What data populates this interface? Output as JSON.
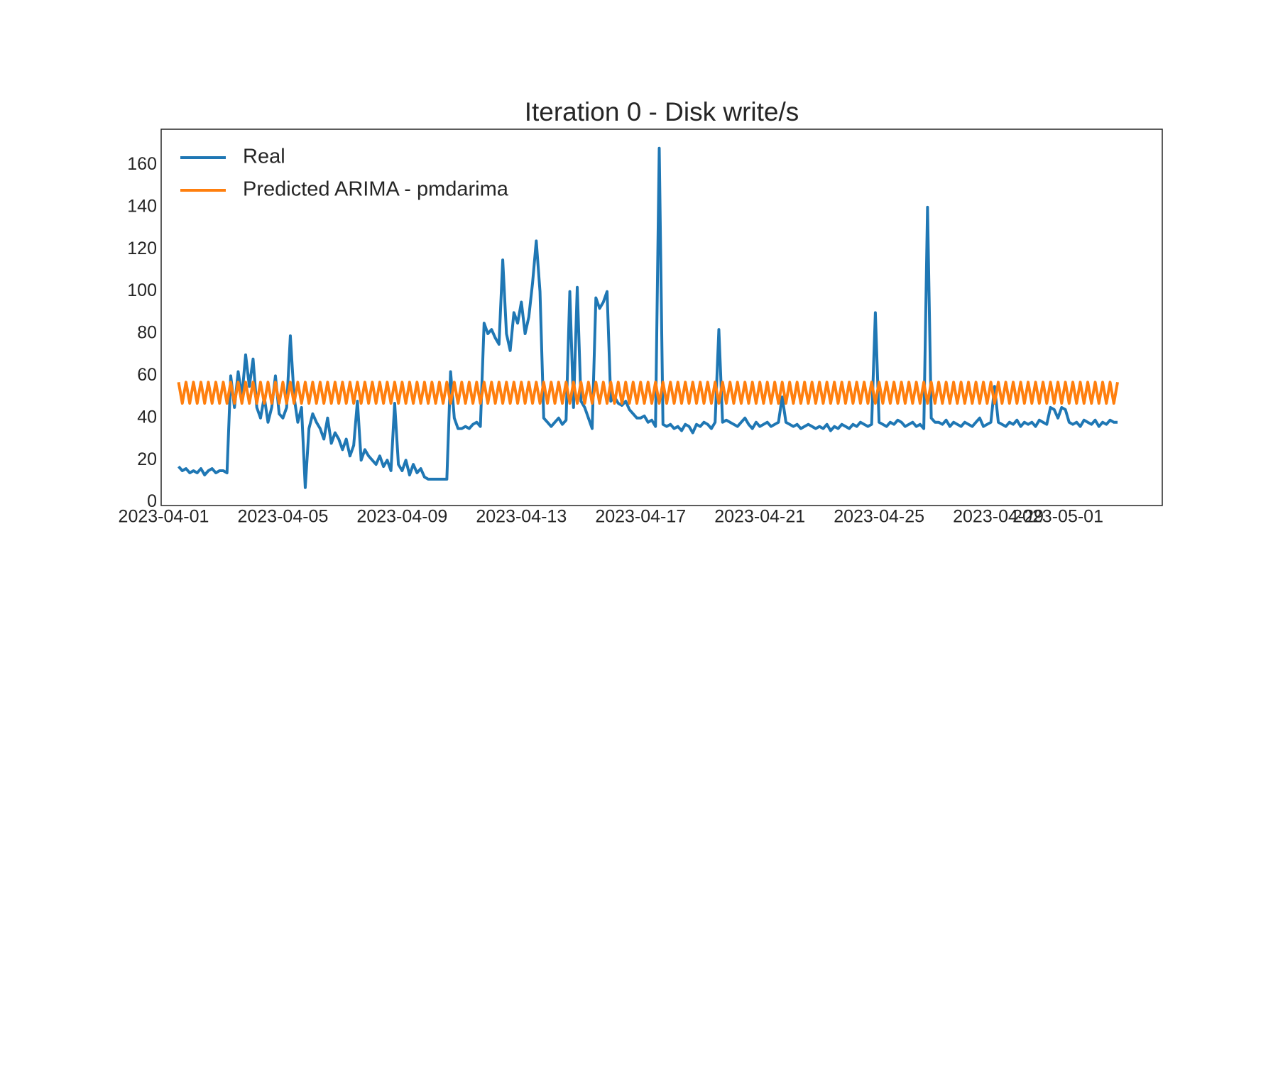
{
  "chart_data": {
    "type": "line",
    "title": "Iteration 0 - Disk write/s",
    "legend": "upper left",
    "grid": false,
    "x": [
      "2023-04-01 12:00",
      "2023-04-01 15:00",
      "2023-04-01 18:00",
      "2023-04-01 21:00",
      "2023-04-02 00:00",
      "2023-04-02 03:00",
      "2023-04-02 06:00",
      "2023-04-02 09:00",
      "2023-04-02 12:00",
      "2023-04-02 15:00",
      "2023-04-02 18:00",
      "2023-04-02 21:00",
      "2023-04-03 00:00",
      "2023-04-03 03:00",
      "2023-04-03 06:00",
      "2023-04-03 09:00",
      "2023-04-03 12:00",
      "2023-04-03 15:00",
      "2023-04-03 18:00",
      "2023-04-03 21:00",
      "2023-04-04 00:00",
      "2023-04-04 03:00",
      "2023-04-04 06:00",
      "2023-04-04 09:00",
      "2023-04-04 12:00",
      "2023-04-04 15:00",
      "2023-04-04 18:00",
      "2023-04-04 21:00",
      "2023-04-05 00:00",
      "2023-04-05 03:00",
      "2023-04-05 06:00",
      "2023-04-05 09:00",
      "2023-04-05 12:00",
      "2023-04-05 15:00",
      "2023-04-05 18:00",
      "2023-04-05 21:00",
      "2023-04-06 00:00",
      "2023-04-06 03:00",
      "2023-04-06 06:00",
      "2023-04-06 09:00",
      "2023-04-06 12:00",
      "2023-04-06 15:00",
      "2023-04-06 18:00",
      "2023-04-06 21:00",
      "2023-04-07 00:00",
      "2023-04-07 03:00",
      "2023-04-07 06:00",
      "2023-04-07 09:00",
      "2023-04-07 12:00",
      "2023-04-07 15:00",
      "2023-04-07 18:00",
      "2023-04-07 21:00",
      "2023-04-08 00:00",
      "2023-04-08 03:00",
      "2023-04-08 06:00",
      "2023-04-08 09:00",
      "2023-04-08 12:00",
      "2023-04-08 15:00",
      "2023-04-08 18:00",
      "2023-04-08 21:00",
      "2023-04-09 00:00",
      "2023-04-09 03:00",
      "2023-04-09 06:00",
      "2023-04-09 09:00",
      "2023-04-09 12:00",
      "2023-04-09 15:00",
      "2023-04-09 18:00",
      "2023-04-09 21:00",
      "2023-04-10 00:00",
      "2023-04-10 03:00",
      "2023-04-10 06:00",
      "2023-04-10 09:00",
      "2023-04-10 12:00",
      "2023-04-10 15:00",
      "2023-04-10 18:00",
      "2023-04-10 21:00",
      "2023-04-11 00:00",
      "2023-04-11 03:00",
      "2023-04-11 06:00",
      "2023-04-11 09:00",
      "2023-04-11 12:00",
      "2023-04-11 15:00",
      "2023-04-11 18:00",
      "2023-04-11 21:00",
      "2023-04-12 00:00",
      "2023-04-12 03:00",
      "2023-04-12 06:00",
      "2023-04-12 09:00",
      "2023-04-12 12:00",
      "2023-04-12 15:00",
      "2023-04-12 18:00",
      "2023-04-12 21:00",
      "2023-04-13 00:00",
      "2023-04-13 03:00",
      "2023-04-13 06:00",
      "2023-04-13 09:00",
      "2023-04-13 12:00",
      "2023-04-13 15:00",
      "2023-04-13 18:00",
      "2023-04-13 21:00",
      "2023-04-14 00:00",
      "2023-04-14 03:00",
      "2023-04-14 06:00",
      "2023-04-14 09:00",
      "2023-04-14 12:00",
      "2023-04-14 15:00",
      "2023-04-14 18:00",
      "2023-04-14 21:00",
      "2023-04-15 00:00",
      "2023-04-15 03:00",
      "2023-04-15 06:00",
      "2023-04-15 09:00",
      "2023-04-15 12:00",
      "2023-04-15 15:00",
      "2023-04-15 18:00",
      "2023-04-15 21:00",
      "2023-04-16 00:00",
      "2023-04-16 03:00",
      "2023-04-16 06:00",
      "2023-04-16 09:00",
      "2023-04-16 12:00",
      "2023-04-16 15:00",
      "2023-04-16 18:00",
      "2023-04-16 21:00",
      "2023-04-17 00:00",
      "2023-04-17 03:00",
      "2023-04-17 06:00",
      "2023-04-17 09:00",
      "2023-04-17 12:00",
      "2023-04-17 15:00",
      "2023-04-17 18:00",
      "2023-04-17 21:00",
      "2023-04-18 00:00",
      "2023-04-18 03:00",
      "2023-04-18 06:00",
      "2023-04-18 09:00",
      "2023-04-18 12:00",
      "2023-04-18 15:00",
      "2023-04-18 18:00",
      "2023-04-18 21:00",
      "2023-04-19 00:00",
      "2023-04-19 03:00",
      "2023-04-19 06:00",
      "2023-04-19 09:00",
      "2023-04-19 12:00",
      "2023-04-19 15:00",
      "2023-04-19 18:00",
      "2023-04-19 21:00",
      "2023-04-20 00:00",
      "2023-04-20 03:00",
      "2023-04-20 06:00",
      "2023-04-20 09:00",
      "2023-04-20 12:00",
      "2023-04-20 15:00",
      "2023-04-20 18:00",
      "2023-04-20 21:00",
      "2023-04-21 00:00",
      "2023-04-21 03:00",
      "2023-04-21 06:00",
      "2023-04-21 09:00",
      "2023-04-21 12:00",
      "2023-04-21 15:00",
      "2023-04-21 18:00",
      "2023-04-21 21:00",
      "2023-04-22 00:00",
      "2023-04-22 03:00",
      "2023-04-22 06:00",
      "2023-04-22 09:00",
      "2023-04-22 12:00",
      "2023-04-22 15:00",
      "2023-04-22 18:00",
      "2023-04-22 21:00",
      "2023-04-23 00:00",
      "2023-04-23 03:00",
      "2023-04-23 06:00",
      "2023-04-23 09:00",
      "2023-04-23 12:00",
      "2023-04-23 15:00",
      "2023-04-23 18:00",
      "2023-04-23 21:00",
      "2023-04-24 00:00",
      "2023-04-24 03:00",
      "2023-04-24 06:00",
      "2023-04-24 09:00",
      "2023-04-24 12:00",
      "2023-04-24 15:00",
      "2023-04-24 18:00",
      "2023-04-24 21:00",
      "2023-04-25 00:00",
      "2023-04-25 03:00",
      "2023-04-25 06:00",
      "2023-04-25 09:00",
      "2023-04-25 12:00",
      "2023-04-25 15:00",
      "2023-04-25 18:00",
      "2023-04-25 21:00",
      "2023-04-26 00:00",
      "2023-04-26 03:00",
      "2023-04-26 06:00",
      "2023-04-26 09:00",
      "2023-04-26 12:00",
      "2023-04-26 15:00",
      "2023-04-26 18:00",
      "2023-04-26 21:00",
      "2023-04-27 00:00",
      "2023-04-27 03:00",
      "2023-04-27 06:00",
      "2023-04-27 09:00",
      "2023-04-27 12:00",
      "2023-04-27 15:00",
      "2023-04-27 18:00",
      "2023-04-27 21:00",
      "2023-04-28 00:00",
      "2023-04-28 03:00",
      "2023-04-28 06:00",
      "2023-04-28 09:00",
      "2023-04-28 12:00",
      "2023-04-28 15:00",
      "2023-04-28 18:00",
      "2023-04-28 21:00",
      "2023-04-29 00:00",
      "2023-04-29 03:00",
      "2023-04-29 06:00",
      "2023-04-29 09:00",
      "2023-04-29 12:00",
      "2023-04-29 15:00",
      "2023-04-29 18:00",
      "2023-04-29 21:00",
      "2023-04-30 00:00",
      "2023-04-30 03:00",
      "2023-04-30 06:00",
      "2023-04-30 09:00",
      "2023-04-30 12:00",
      "2023-04-30 15:00",
      "2023-04-30 18:00",
      "2023-04-30 21:00",
      "2023-05-01 00:00",
      "2023-05-01 03:00",
      "2023-05-01 06:00",
      "2023-05-01 09:00",
      "2023-05-01 12:00",
      "2023-05-01 15:00",
      "2023-05-01 18:00",
      "2023-05-01 21:00",
      "2023-05-02 00:00",
      "2023-05-02 03:00",
      "2023-05-02 06:00",
      "2023-05-02 09:00",
      "2023-05-02 12:00",
      "2023-05-02 15:00",
      "2023-05-02 18:00",
      "2023-05-02 21:00",
      "2023-05-03 00:00"
    ],
    "series": [
      {
        "name": "Real",
        "color": "#1f77b4",
        "values": [
          17,
          15,
          16,
          14,
          15,
          14,
          16,
          13,
          15,
          16,
          14,
          15,
          15,
          14,
          60,
          45,
          62,
          50,
          70,
          55,
          68,
          45,
          40,
          50,
          38,
          45,
          60,
          42,
          40,
          45,
          79,
          50,
          38,
          45,
          7,
          35,
          42,
          38,
          35,
          30,
          40,
          28,
          33,
          30,
          25,
          30,
          22,
          27,
          48,
          20,
          25,
          22,
          20,
          18,
          22,
          17,
          20,
          15,
          47,
          18,
          15,
          20,
          13,
          18,
          14,
          16,
          12,
          11,
          11,
          11,
          11,
          11,
          11,
          62,
          40,
          35,
          35,
          36,
          35,
          37,
          38,
          36,
          85,
          80,
          82,
          78,
          75,
          115,
          80,
          72,
          90,
          85,
          95,
          80,
          88,
          104,
          124,
          100,
          40,
          38,
          36,
          38,
          40,
          37,
          39,
          100,
          45,
          102,
          48,
          45,
          40,
          35,
          97,
          92,
          95,
          100,
          48,
          50,
          47,
          46,
          48,
          44,
          42,
          40,
          40,
          41,
          38,
          39,
          36,
          168,
          37,
          36,
          37,
          35,
          36,
          34,
          37,
          36,
          33,
          37,
          36,
          38,
          37,
          35,
          38,
          82,
          38,
          39,
          38,
          37,
          36,
          38,
          40,
          37,
          35,
          38,
          36,
          37,
          38,
          36,
          37,
          38,
          50,
          38,
          37,
          36,
          37,
          35,
          36,
          37,
          36,
          35,
          36,
          35,
          37,
          34,
          36,
          35,
          37,
          36,
          35,
          37,
          36,
          38,
          37,
          36,
          37,
          90,
          38,
          37,
          36,
          38,
          37,
          39,
          38,
          36,
          37,
          38,
          36,
          37,
          35,
          140,
          40,
          38,
          38,
          37,
          39,
          36,
          38,
          37,
          36,
          38,
          37,
          36,
          38,
          40,
          36,
          37,
          38,
          55,
          38,
          37,
          36,
          38,
          37,
          39,
          36,
          38,
          37,
          38,
          36,
          39,
          38,
          37,
          45,
          44,
          40,
          45,
          44,
          38,
          37,
          38,
          36,
          39,
          38,
          37,
          39,
          36,
          38,
          37,
          39,
          38,
          38
        ]
      },
      {
        "name": "Predicted ARIMA - pmdarima",
        "color": "#ff7f0e",
        "values": [
          57,
          47,
          57,
          47,
          57,
          47,
          57,
          47,
          57,
          47,
          57,
          47,
          57,
          47,
          57,
          47,
          57,
          47,
          57,
          47,
          57,
          47,
          57,
          47,
          57,
          47,
          57,
          47,
          57,
          47,
          57,
          47,
          57,
          47,
          57,
          47,
          57,
          47,
          57,
          47,
          57,
          47,
          57,
          47,
          57,
          47,
          57,
          47,
          57,
          47,
          57,
          47,
          57,
          47,
          57,
          47,
          57,
          47,
          57,
          47,
          57,
          47,
          57,
          47,
          57,
          47,
          57,
          47,
          57,
          47,
          57,
          47,
          57,
          47,
          57,
          47,
          57,
          47,
          57,
          47,
          57,
          47,
          57,
          47,
          57,
          47,
          57,
          47,
          57,
          47,
          57,
          47,
          57,
          47,
          57,
          47,
          57,
          47,
          57,
          47,
          57,
          47,
          57,
          47,
          57,
          47,
          57,
          47,
          57,
          47,
          57,
          47,
          57,
          47,
          57,
          47,
          57,
          47,
          57,
          47,
          57,
          47,
          57,
          47,
          57,
          47,
          57,
          47,
          57,
          47,
          57,
          47,
          57,
          47,
          57,
          47,
          57,
          47,
          57,
          47,
          57,
          47,
          57,
          47,
          57,
          47,
          57,
          47,
          57,
          47,
          57,
          47,
          57,
          47,
          57,
          47,
          57,
          47,
          57,
          47,
          57,
          47,
          57,
          47,
          57,
          47,
          57,
          47,
          57,
          47,
          57,
          47,
          57,
          47,
          57,
          47,
          57,
          47,
          57,
          47,
          57,
          47,
          57,
          47,
          57,
          47,
          57,
          47,
          57,
          47,
          57,
          47,
          57,
          47,
          57,
          47,
          57,
          47,
          57,
          47,
          57,
          47,
          57,
          47,
          57,
          47,
          57,
          47,
          57,
          47,
          57,
          47,
          57,
          47,
          57,
          47,
          57,
          47,
          57,
          47,
          57,
          47,
          57,
          47,
          57,
          47,
          57,
          47,
          57,
          47,
          57,
          47,
          57,
          47,
          57,
          47,
          57,
          47,
          57,
          47,
          57,
          47,
          57,
          47,
          57,
          47,
          57,
          47,
          57,
          47,
          57,
          47,
          57
        ]
      }
    ],
    "xlim": [
      "2023-03-31 22:00",
      "2023-05-04 12:00"
    ],
    "xticks": [
      "2023-04-01",
      "2023-04-05",
      "2023-04-09",
      "2023-04-13",
      "2023-04-17",
      "2023-04-21",
      "2023-04-25",
      "2023-04-29",
      "2023-05-01"
    ],
    "ylim": [
      -1.5,
      177
    ],
    "yticks": [
      0,
      20,
      40,
      60,
      80,
      100,
      120,
      140,
      160
    ]
  }
}
